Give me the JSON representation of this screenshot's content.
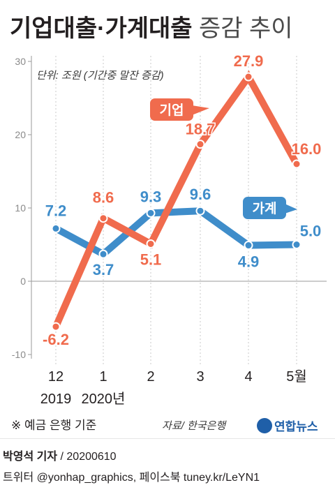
{
  "chart_data": {
    "type": "line",
    "title": "기업대출·가계대출",
    "title_suffix": "증감 추이",
    "unit_note": "단위: 조원 (기간중 말잔 증감)",
    "categories": [
      "12",
      "1",
      "2",
      "3",
      "4",
      "5월"
    ],
    "year_labels": [
      "2019",
      "2020년",
      "",
      "",
      "",
      ""
    ],
    "y_ticks": [
      30,
      20,
      10,
      0,
      -10
    ],
    "ylim": [
      -10,
      30
    ],
    "grid": false,
    "series": [
      {
        "name": "기업",
        "color": "#f06b4d",
        "values": [
          -6.2,
          8.6,
          5.1,
          18.7,
          27.9,
          16.0
        ],
        "data_labels": [
          "-6.2",
          "8.6",
          "5.1",
          "18.7",
          "27.9",
          "16.0"
        ]
      },
      {
        "name": "가계",
        "color": "#3f8dca",
        "values": [
          7.2,
          3.7,
          9.3,
          9.6,
          4.9,
          5.0
        ],
        "data_labels": [
          "7.2",
          "3.7",
          "9.3",
          "9.6",
          "4.9",
          "5.0"
        ]
      }
    ],
    "note": "※ 예금 은행 기준",
    "source": "자료/ 한국은행",
    "logo_text": "연합뉴스"
  },
  "footer": {
    "reporter": "박영석 기자",
    "date_text": "/  20200610",
    "social": "트위터 @yonhap_graphics, 페이스북 tuney.kr/LeYN1"
  }
}
